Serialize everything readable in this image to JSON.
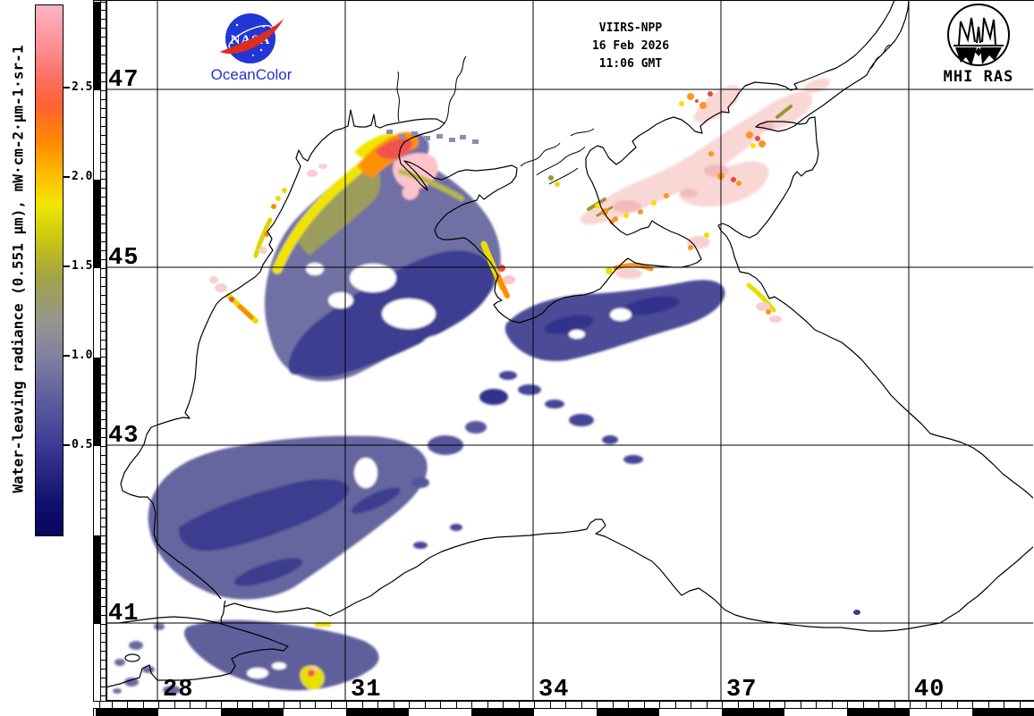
{
  "branding": {
    "nasa_logo_icon": "nasa-meatball-logo",
    "nasa_wordmark": "NASA",
    "oceancolor_label": "OceanColor",
    "mhi_logo_icon": "mhi-ras-emblem",
    "mhi_label": "MHI RAS"
  },
  "header": {
    "satellite": "VIIRS-NPP",
    "date": "16 Feb 2026",
    "time": "11:06 GMT"
  },
  "colorbar": {
    "title": "Water-leaving radiance (0.551 μm), mW·cm-2·μm-1·sr-1",
    "range_min": 0,
    "range_max": 2.965,
    "ticks": [
      {
        "label": "2.5",
        "value": 2.5
      },
      {
        "label": "2.0",
        "value": 2.0
      },
      {
        "label": "1.5",
        "value": 1.5
      },
      {
        "label": "1.0",
        "value": 1.0
      },
      {
        "label": "0.5",
        "value": 0.5
      }
    ],
    "gradient": [
      {
        "v": 0.0,
        "c": "#06065c"
      },
      {
        "v": 0.18,
        "c": "#10106e"
      },
      {
        "v": 0.5,
        "c": "#3b3b95"
      },
      {
        "v": 0.8,
        "c": "#63639f"
      },
      {
        "v": 1.0,
        "c": "#8080a2"
      },
      {
        "v": 1.2,
        "c": "#969690"
      },
      {
        "v": 1.45,
        "c": "#a3a344"
      },
      {
        "v": 1.65,
        "c": "#c9c513"
      },
      {
        "v": 1.85,
        "c": "#f0e800"
      },
      {
        "v": 2.0,
        "c": "#ffc000"
      },
      {
        "v": 2.2,
        "c": "#ff8a00"
      },
      {
        "v": 2.4,
        "c": "#ff6330"
      },
      {
        "v": 2.55,
        "c": "#fb6e60"
      },
      {
        "v": 2.75,
        "c": "#fc9297"
      },
      {
        "v": 2.965,
        "c": "#fdb3c5"
      }
    ]
  },
  "map_axes": {
    "lat_labels": [
      {
        "label": "47",
        "deg": 47
      },
      {
        "label": "45",
        "deg": 45
      },
      {
        "label": "43",
        "deg": 43
      },
      {
        "label": "41",
        "deg": 41
      }
    ],
    "lon_labels": [
      {
        "label": "28",
        "deg": 28
      },
      {
        "label": "31",
        "deg": 31
      },
      {
        "label": "34",
        "deg": 34
      },
      {
        "label": "37",
        "deg": 37
      },
      {
        "label": "40",
        "deg": 40
      }
    ]
  },
  "map_colors": {
    "low_radiance_blue": "#3e3e91",
    "shelf_slate_blue": "#6f6fa5",
    "transition_olive": "#9c9c5c",
    "bloom_yellow": "#f0e400",
    "bloom_orange": "#ff9100",
    "bloom_red": "#f0524a",
    "high_radiance_pink": "#ffc3cb",
    "azov_ice_pink": "#f9d7d5"
  }
}
